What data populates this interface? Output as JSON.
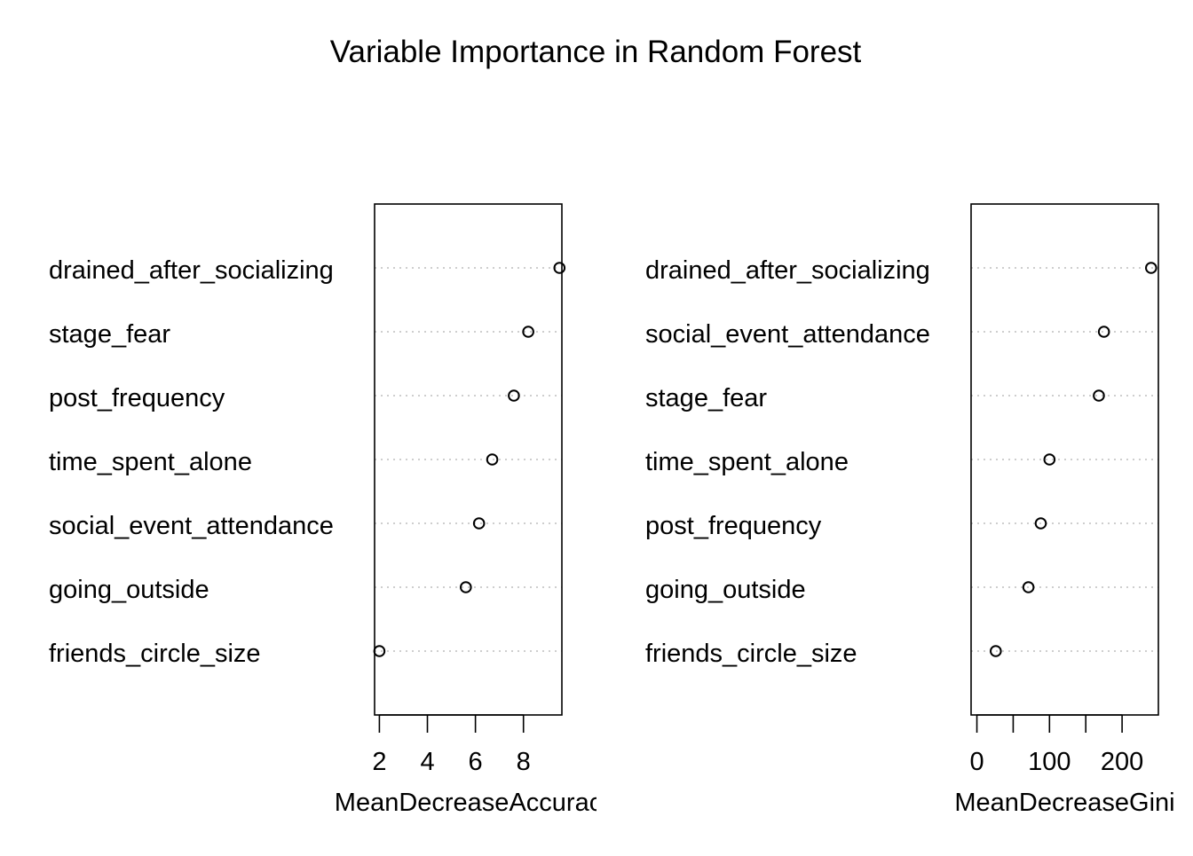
{
  "title": "Variable Importance in Random Forest",
  "chart_data": [
    {
      "type": "scatter",
      "xlabel": "MeanDecreaseAccurac",
      "xlim": [
        1.8,
        9.6
      ],
      "xticks": [
        2,
        4,
        6,
        8
      ],
      "grid": "dotted horizontal lines",
      "categories": [
        "drained_after_socializing",
        "stage_fear",
        "post_frequency",
        "time_spent_alone",
        "social_event_attendance",
        "going_outside",
        "friends_circle_size"
      ],
      "values": [
        9.5,
        8.2,
        7.6,
        6.7,
        6.15,
        5.6,
        2.0
      ]
    },
    {
      "type": "scatter",
      "xlabel": "MeanDecreaseGini",
      "xlim": [
        -8,
        250
      ],
      "xticks": [
        0,
        50,
        100,
        150,
        200
      ],
      "xtick_labels": [
        "0",
        "",
        "100",
        "",
        "200"
      ],
      "grid": "dotted horizontal lines",
      "categories": [
        "drained_after_socializing",
        "social_event_attendance",
        "stage_fear",
        "time_spent_alone",
        "post_frequency",
        "going_outside",
        "friends_circle_size"
      ],
      "values": [
        240,
        175,
        168,
        100,
        88,
        71,
        26
      ]
    }
  ]
}
